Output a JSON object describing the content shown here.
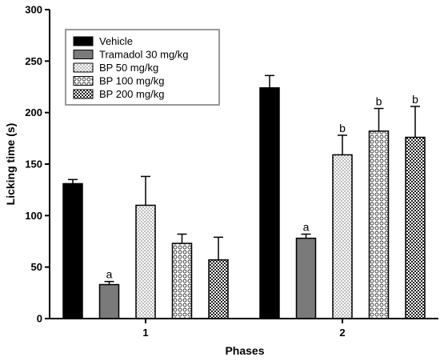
{
  "chart_data": {
    "type": "bar",
    "xlabel": "Phases",
    "ylabel": "Licking time (s)",
    "ylim": [
      0,
      300
    ],
    "yticks": [
      0,
      50,
      100,
      150,
      200,
      250,
      300
    ],
    "categories": [
      "1",
      "2"
    ],
    "legend_position": "top-left",
    "grid": false,
    "series": [
      {
        "name": "Vehicle",
        "values": [
          131,
          224
        ],
        "errors": [
          4,
          12
        ],
        "labels": [
          "",
          ""
        ],
        "pattern": "solid-black"
      },
      {
        "name": "Tramadol 30 mg/kg",
        "values": [
          33,
          78
        ],
        "errors": [
          3,
          4
        ],
        "labels": [
          "a",
          "a"
        ],
        "pattern": "solid-gray"
      },
      {
        "name": "BP 50 mg/kg",
        "values": [
          110,
          159
        ],
        "errors": [
          28,
          19
        ],
        "labels": [
          "",
          "b"
        ],
        "pattern": "dots"
      },
      {
        "name": "BP 100 mg/kg",
        "values": [
          73,
          182
        ],
        "errors": [
          9,
          22
        ],
        "labels": [
          "",
          "b"
        ],
        "pattern": "circles"
      },
      {
        "name": "BP 200 mg/kg",
        "values": [
          57,
          176
        ],
        "errors": [
          22,
          30
        ],
        "labels": [
          "",
          "b"
        ],
        "pattern": "checker"
      }
    ]
  }
}
